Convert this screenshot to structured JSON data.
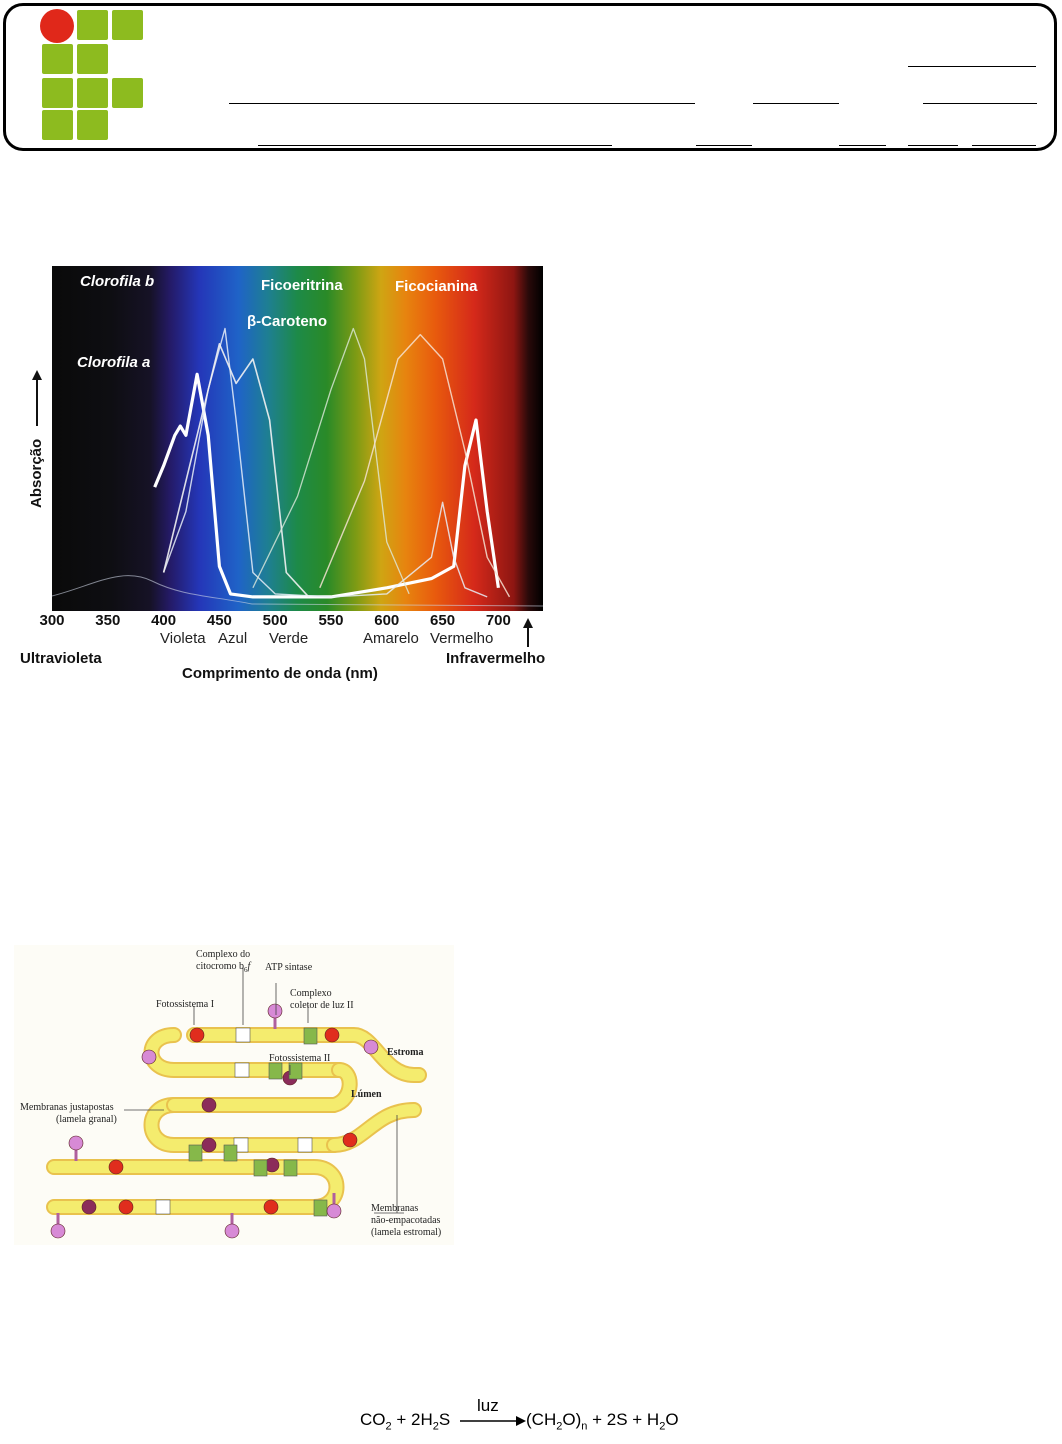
{
  "header": {
    "logo": {
      "name": "institution-logo",
      "colors": {
        "dot": "#e0281a",
        "square": "#8dbb1f"
      }
    }
  },
  "spectrum_chart": {
    "chart_data": {
      "type": "line",
      "xlabel": "Comprimento de onda (nm)",
      "ylabel": "Absorção",
      "x_ticks": [
        "300",
        "350",
        "400",
        "450",
        "500",
        "550",
        "600",
        "650",
        "700"
      ],
      "xlim": [
        300,
        740
      ],
      "color_regions": [
        "Violeta",
        "Azul",
        "Verde",
        "Amarelo",
        "Vermelho"
      ],
      "edge_labels": {
        "left": "Ultravioleta",
        "right": "Infravermelho"
      },
      "series": [
        {
          "name": "Clorofila a",
          "x": [
            392,
            400,
            410,
            415,
            420,
            430,
            440,
            450,
            460,
            480,
            500,
            550,
            600,
            640,
            660,
            670,
            680,
            690,
            700
          ],
          "y": [
            0.38,
            0.45,
            0.55,
            0.58,
            0.55,
            0.75,
            0.55,
            0.12,
            0.03,
            0.02,
            0.02,
            0.02,
            0.05,
            0.08,
            0.12,
            0.45,
            0.6,
            0.3,
            0.05
          ]
        },
        {
          "name": "Clorofila b",
          "x": [
            400,
            420,
            440,
            455,
            465,
            480,
            500,
            550,
            600,
            640,
            650,
            660,
            670,
            690
          ],
          "y": [
            0.1,
            0.3,
            0.7,
            0.9,
            0.6,
            0.1,
            0.03,
            0.02,
            0.03,
            0.15,
            0.33,
            0.15,
            0.05,
            0.02
          ]
        },
        {
          "name": "β-Caroteno",
          "x": [
            400,
            430,
            450,
            465,
            480,
            495,
            510,
            530
          ],
          "y": [
            0.1,
            0.55,
            0.85,
            0.72,
            0.8,
            0.6,
            0.1,
            0.02
          ]
        },
        {
          "name": "Ficoeritrina",
          "x": [
            480,
            520,
            550,
            570,
            580,
            600,
            620
          ],
          "y": [
            0.05,
            0.35,
            0.7,
            0.9,
            0.8,
            0.2,
            0.03
          ]
        },
        {
          "name": "Ficocianina",
          "x": [
            540,
            580,
            610,
            630,
            650,
            670,
            690,
            710
          ],
          "y": [
            0.05,
            0.4,
            0.8,
            0.88,
            0.8,
            0.5,
            0.15,
            0.02
          ]
        }
      ]
    }
  },
  "thylakoid": {
    "labels": {
      "cyt_complex_1": "Complexo do",
      "cyt_complex_2": "citocromo b",
      "cyt_sub": "6",
      "cyt_f": "f",
      "atp": "ATP sintase",
      "ps1": "Fotossistema I",
      "lhc_1": "Complexo",
      "lhc_2": "coletor de luz II",
      "ps2": "Fotossistema II",
      "estroma": "Estroma",
      "lumen": "Lúmen",
      "granal_1": "Membranas justapostas",
      "granal_2": "(lamela granal)",
      "stromal_1": "Membranas",
      "stromal_2": "não-empacotadas",
      "stromal_3": "(lamela estromal)"
    },
    "colors": {
      "membrane": "#f4ec6e",
      "membrane_dark": "#e9c24e",
      "ps1": "#e02d1d",
      "ps2": "#8b2c5a",
      "lhc": "#86b84a",
      "atp": "#d78ad6"
    }
  },
  "equation": {
    "co2": "CO",
    "co2_sub": "2",
    "plus1": " + 2H",
    "h2s_sub": "2",
    "s": "S",
    "over": "luz",
    "ch2o": "(CH",
    "ch2o_sub": "2",
    "ch2o_end": "O)",
    "n": "n",
    "plus2": " +  2S  +  H",
    "h2o_sub": "2",
    "o": "O"
  }
}
